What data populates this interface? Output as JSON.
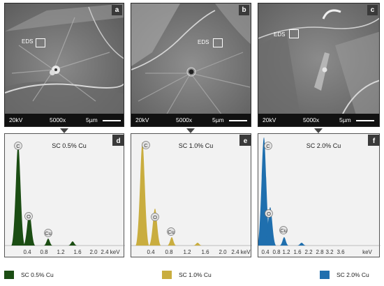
{
  "panels": [
    {
      "letter": "a",
      "eds": "EDS",
      "kv": "20kV",
      "mag": "5000x",
      "scale": "5µm",
      "spectrum": {
        "letter": "d",
        "title": "SC 0.5% Cu",
        "color": "#1b4d13",
        "xticks": [
          "0.4",
          "0.8",
          "1.2",
          "1.6",
          "2.0",
          "2.4 keV"
        ],
        "elements": [
          "C",
          "O",
          "Cu"
        ]
      },
      "legend": "SC 0.5% Cu"
    },
    {
      "letter": "b",
      "eds": "EDS",
      "kv": "20kV",
      "mag": "5000x",
      "scale": "5µm",
      "spectrum": {
        "letter": "e",
        "title": "SC 1.0% Cu",
        "color": "#c9ad3f",
        "xticks": [
          "0.4",
          "0.8",
          "1.2",
          "1.6",
          "2.0",
          "2.4 keV"
        ],
        "elements": [
          "C",
          "O",
          "Cu"
        ]
      },
      "legend": "SC 1.0% Cu"
    },
    {
      "letter": "c",
      "eds": "EDS",
      "kv": "20kV",
      "mag": "5000x",
      "scale": "5µm",
      "spectrum": {
        "letter": "f",
        "title": "SC 2.0% Cu",
        "color": "#1f6fae",
        "xticks": [
          "0.4",
          "0.8",
          "1.2",
          "1.6",
          "2.2",
          "2.8",
          "3.2",
          "3.6",
          "keV"
        ],
        "elements": [
          "C",
          "O",
          "Cu"
        ]
      },
      "legend": "SC 2.0% Cu"
    }
  ]
}
